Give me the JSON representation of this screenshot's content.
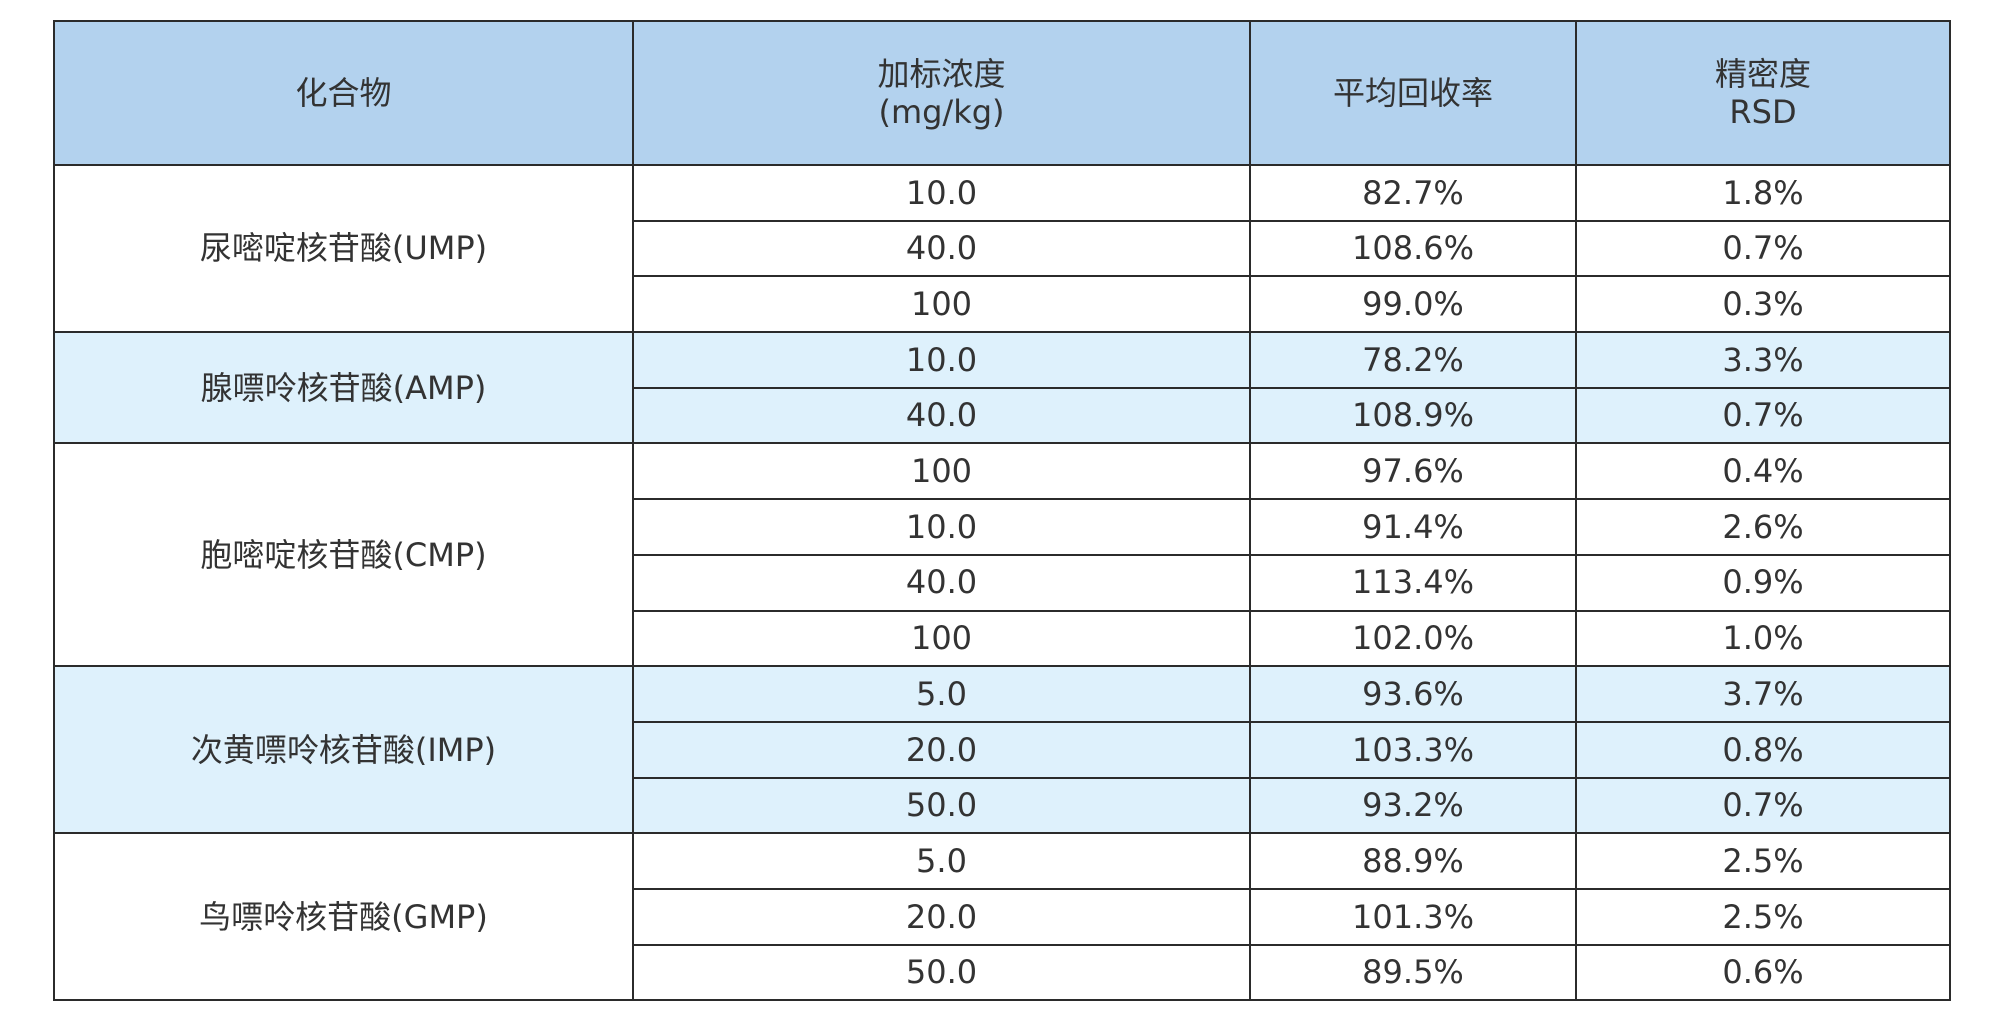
{
  "table": {
    "headers": {
      "compound": "化合物",
      "spike_line1": "加标浓度",
      "spike_line2": "(mg/kg)",
      "recovery": "平均回收率",
      "precision_line1": "精密度",
      "precision_line2": "RSD"
    },
    "groups": [
      {
        "compound": "尿嘧啶核苷酸(UMP)",
        "rows": [
          {
            "conc": "10.0",
            "recovery": "82.7%",
            "rsd": "1.8%"
          },
          {
            "conc": "40.0",
            "recovery": "108.6%",
            "rsd": "0.7%"
          },
          {
            "conc": "100",
            "recovery": "99.0%",
            "rsd": "0.3%"
          }
        ]
      },
      {
        "compound": "腺嘌呤核苷酸(AMP)",
        "rows": [
          {
            "conc": "10.0",
            "recovery": "78.2%",
            "rsd": "3.3%"
          },
          {
            "conc": "40.0",
            "recovery": "108.9%",
            "rsd": "0.7%"
          }
        ]
      },
      {
        "compound": "胞嘧啶核苷酸(CMP)",
        "rows": [
          {
            "conc": "100",
            "recovery": "97.6%",
            "rsd": "0.4%"
          },
          {
            "conc": "10.0",
            "recovery": "91.4%",
            "rsd": "2.6%"
          },
          {
            "conc": "40.0",
            "recovery": "113.4%",
            "rsd": "0.9%"
          },
          {
            "conc": "100",
            "recovery": "102.0%",
            "rsd": "1.0%"
          }
        ]
      },
      {
        "compound": "次黄嘌呤核苷酸(IMP)",
        "rows": [
          {
            "conc": "5.0",
            "recovery": "93.6%",
            "rsd": "3.7%"
          },
          {
            "conc": "20.0",
            "recovery": "103.3%",
            "rsd": "0.8%"
          },
          {
            "conc": "50.0",
            "recovery": "93.2%",
            "rsd": "0.7%"
          }
        ]
      },
      {
        "compound": "鸟嘌呤核苷酸(GMP)",
        "rows": [
          {
            "conc": "5.0",
            "recovery": "88.9%",
            "rsd": "2.5%"
          },
          {
            "conc": "20.0",
            "recovery": "101.3%",
            "rsd": "2.5%"
          },
          {
            "conc": "50.0",
            "recovery": "89.5%",
            "rsd": "0.6%"
          }
        ]
      }
    ]
  },
  "colors": {
    "header_bg": "#b3d2ee",
    "band_blue": "#def1fc",
    "band_white": "#ffffff",
    "border": "#2b2b2b",
    "text": "#333333"
  }
}
